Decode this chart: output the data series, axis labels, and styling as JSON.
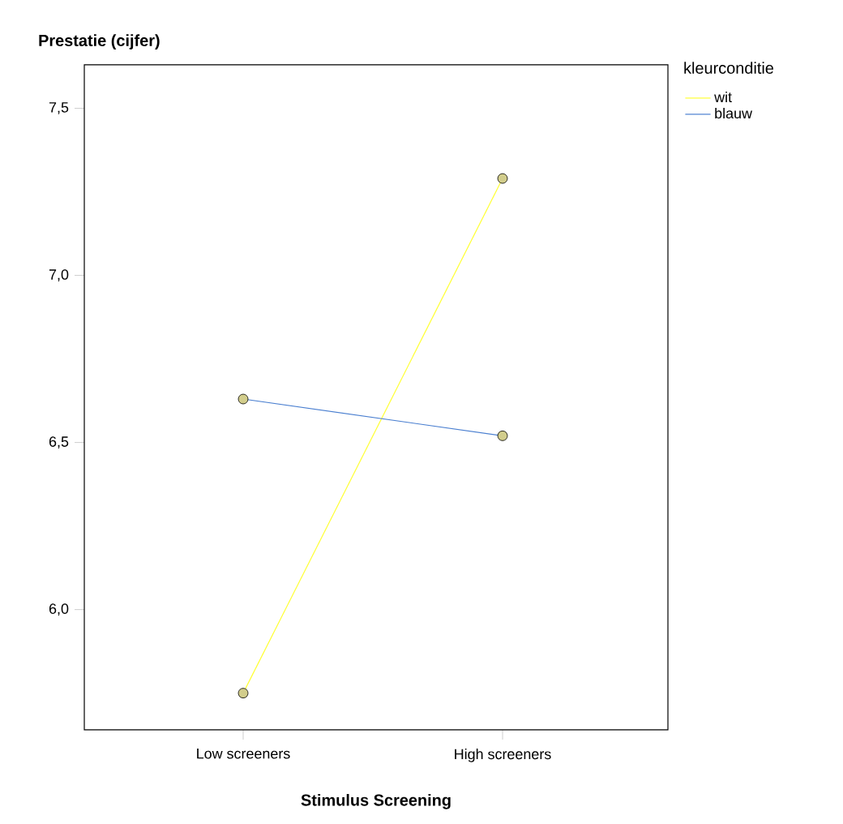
{
  "chart_data": {
    "type": "line",
    "ylabel": "Prestatie (cijfer)",
    "xlabel": "Stimulus Screening",
    "legend_title": "kleurconditie",
    "categories": [
      "Low screeners",
      "High screeners"
    ],
    "series": [
      {
        "name": "wit",
        "color": "#ffff33",
        "values": [
          5.75,
          7.29
        ]
      },
      {
        "name": "blauw",
        "color": "#4a7fd0",
        "values": [
          6.63,
          6.52
        ]
      }
    ],
    "ylim": [
      5.64,
      7.63
    ],
    "yticks": [
      {
        "value": 6,
        "label": "6,0"
      },
      {
        "value": 6.5,
        "label": "6,5"
      },
      {
        "value": 7,
        "label": "7,0"
      },
      {
        "value": 7.5,
        "label": "7,5"
      }
    ],
    "marker": "circle",
    "legend": "top right",
    "grid": false
  }
}
